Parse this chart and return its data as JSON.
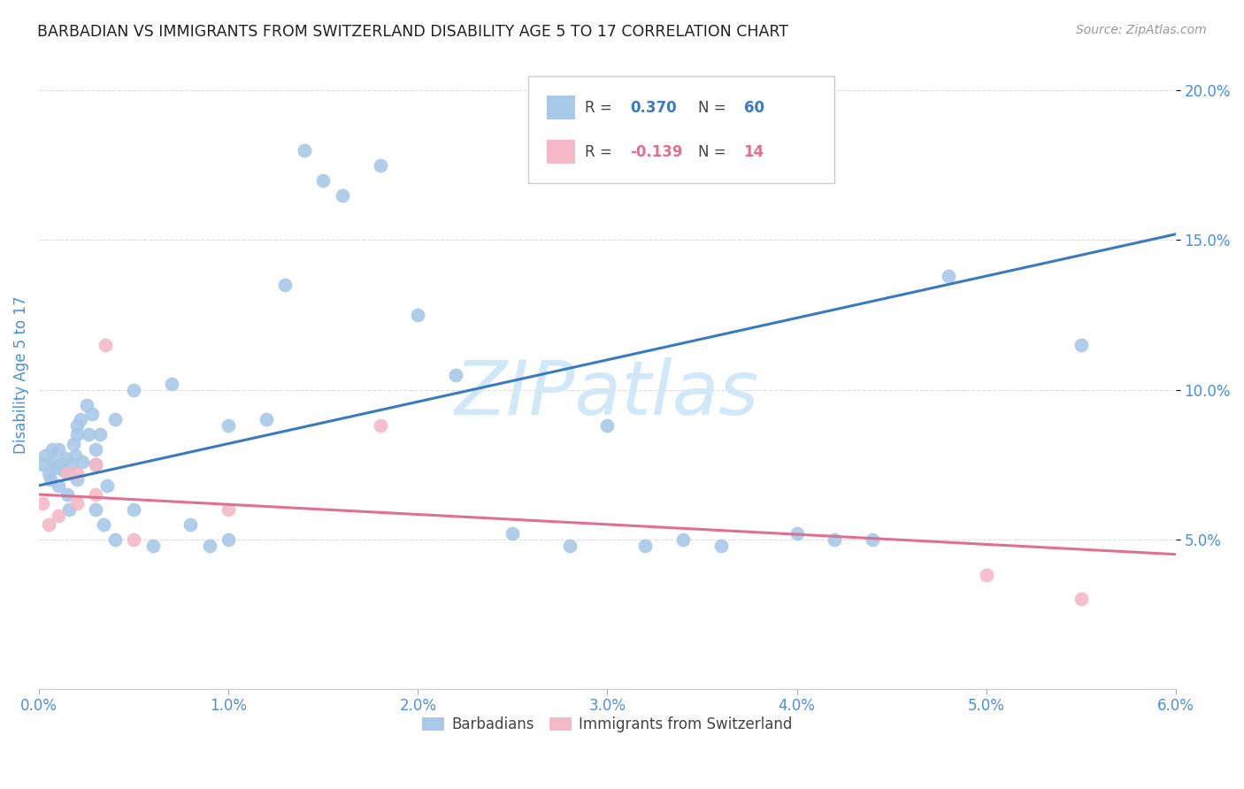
{
  "title": "BARBADIAN VS IMMIGRANTS FROM SWITZERLAND DISABILITY AGE 5 TO 17 CORRELATION CHART",
  "source": "Source: ZipAtlas.com",
  "ylabel": "Disability Age 5 to 17",
  "xlim": [
    0.0,
    0.06
  ],
  "ylim": [
    0.0,
    0.21
  ],
  "xticks": [
    0.0,
    0.01,
    0.02,
    0.03,
    0.04,
    0.05,
    0.06
  ],
  "yticks": [
    0.05,
    0.1,
    0.15,
    0.2
  ],
  "ytick_labels": [
    "5.0%",
    "10.0%",
    "15.0%",
    "20.0%"
  ],
  "xtick_labels": [
    "0.0%",
    "1.0%",
    "2.0%",
    "3.0%",
    "4.0%",
    "5.0%",
    "6.0%"
  ],
  "color_blue": "#a8c8e8",
  "color_blue_line": "#3a7abf",
  "color_pink": "#f4b8c8",
  "color_pink_line": "#e07090",
  "color_axis_label": "#4a90d9",
  "watermark_color": "#d0e8f8",
  "background_color": "#ffffff",
  "grid_color": "#dddddd",
  "blue_points_x": [
    0.0002,
    0.0003,
    0.0005,
    0.0006,
    0.0007,
    0.0008,
    0.0009,
    0.001,
    0.001,
    0.0012,
    0.0013,
    0.0014,
    0.0015,
    0.0016,
    0.0017,
    0.0018,
    0.0019,
    0.002,
    0.002,
    0.002,
    0.0022,
    0.0023,
    0.0025,
    0.0026,
    0.0028,
    0.003,
    0.003,
    0.003,
    0.0032,
    0.0034,
    0.0036,
    0.004,
    0.004,
    0.005,
    0.005,
    0.006,
    0.007,
    0.008,
    0.009,
    0.01,
    0.01,
    0.012,
    0.013,
    0.014,
    0.015,
    0.016,
    0.018,
    0.02,
    0.022,
    0.025,
    0.028,
    0.03,
    0.032,
    0.034,
    0.036,
    0.04,
    0.042,
    0.044,
    0.048,
    0.055
  ],
  "blue_points_y": [
    0.075,
    0.078,
    0.072,
    0.07,
    0.08,
    0.076,
    0.074,
    0.08,
    0.068,
    0.075,
    0.073,
    0.077,
    0.065,
    0.06,
    0.075,
    0.082,
    0.078,
    0.085,
    0.07,
    0.088,
    0.09,
    0.076,
    0.095,
    0.085,
    0.092,
    0.08,
    0.075,
    0.06,
    0.085,
    0.055,
    0.068,
    0.09,
    0.05,
    0.1,
    0.06,
    0.048,
    0.102,
    0.055,
    0.048,
    0.088,
    0.05,
    0.09,
    0.135,
    0.18,
    0.17,
    0.165,
    0.175,
    0.125,
    0.105,
    0.052,
    0.048,
    0.088,
    0.048,
    0.05,
    0.048,
    0.052,
    0.05,
    0.05,
    0.138,
    0.115
  ],
  "pink_points_x": [
    0.0002,
    0.0005,
    0.001,
    0.0015,
    0.002,
    0.002,
    0.003,
    0.003,
    0.0035,
    0.005,
    0.01,
    0.018,
    0.05,
    0.055
  ],
  "pink_points_y": [
    0.062,
    0.055,
    0.058,
    0.072,
    0.072,
    0.062,
    0.065,
    0.075,
    0.115,
    0.05,
    0.06,
    0.088,
    0.038,
    0.03
  ],
  "blue_line_x0": 0.0,
  "blue_line_x1": 0.06,
  "blue_line_y0": 0.068,
  "blue_line_y1": 0.152,
  "pink_line_x0": 0.0,
  "pink_line_x1": 0.06,
  "pink_line_y0": 0.065,
  "pink_line_y1": 0.045
}
